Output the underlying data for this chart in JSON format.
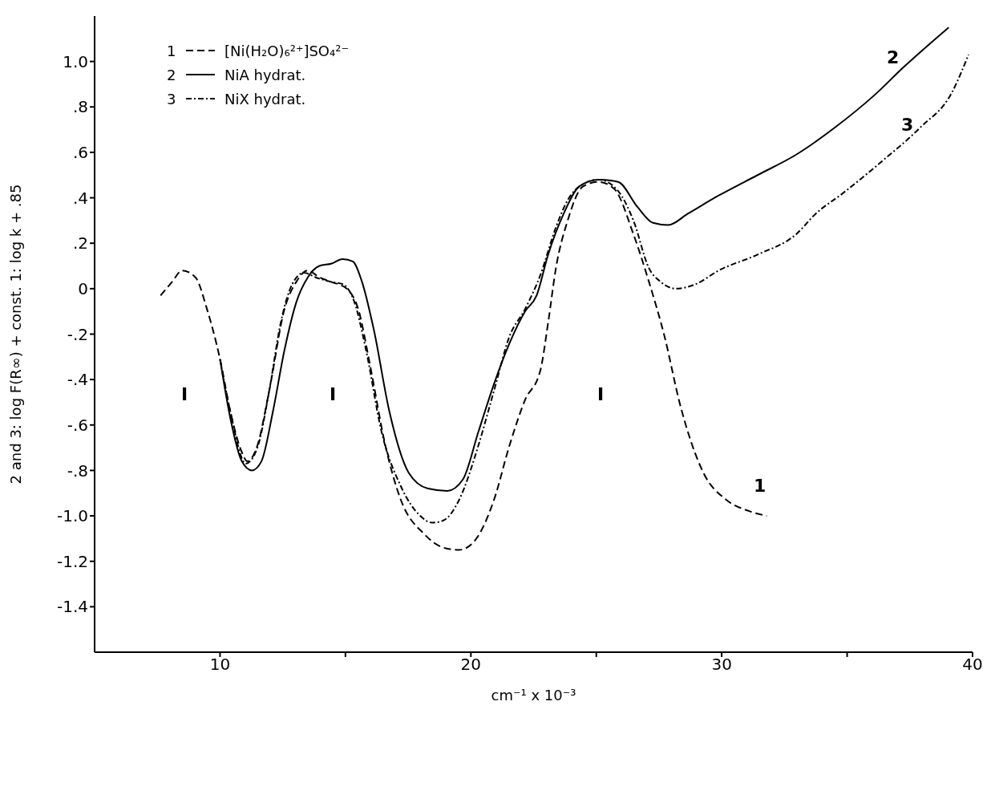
{
  "chart_data": {
    "type": "line",
    "xlabel": "cm⁻¹ x 10⁻³",
    "ylabel": "2 and 3: log F(R∞) + const.      1: log k + .85",
    "xlim": [
      5,
      40
    ],
    "xticks": [
      10,
      {
        "value": 15,
        "label": null
      },
      20,
      {
        "value": 25,
        "label": null
      },
      30,
      {
        "value": 35,
        "label": null
      },
      40
    ],
    "ylim": [
      -1.6,
      1.2
    ],
    "yticks": [
      {
        "value": 1.0,
        "label": "1.0"
      },
      {
        "value": 0.8,
        "label": ".8"
      },
      {
        "value": 0.6,
        "label": ".6"
      },
      {
        "value": 0.4,
        "label": ".4"
      },
      {
        "value": 0.2,
        "label": ".2"
      },
      0,
      {
        "value": -0.2,
        "label": "-.2"
      },
      {
        "value": -0.4,
        "label": "-.4"
      },
      {
        "value": -0.6,
        "label": "-.6"
      },
      {
        "value": -0.8,
        "label": "-.8"
      },
      {
        "value": -1.0,
        "label": "-1.0"
      },
      {
        "value": -1.2,
        "label": "-1.2"
      },
      {
        "value": -1.4,
        "label": "-1.4"
      }
    ],
    "legend": "top left",
    "marker": "none",
    "series": [
      {
        "name": "[Ni(H₂O)₆²⁺]SO₄²⁻",
        "color": "#000000",
        "line_style": "dashed",
        "x": [
          7.63,
          8.09,
          8.49,
          9.02,
          9.48,
          10.0,
          10.41,
          10.87,
          11.09,
          11.49,
          11.96,
          12.57,
          13.04,
          13.5,
          13.96,
          14.43,
          15.05,
          15.51,
          15.97,
          16.59,
          17.21,
          18.14,
          18.91,
          19.53,
          20.15,
          20.92,
          21.54,
          22.16,
          22.77,
          23.08,
          23.39,
          23.86,
          24.47,
          25.09,
          25.71,
          26.48,
          27.1,
          27.72,
          28.34,
          29.27,
          30.19,
          31.12,
          31.8
        ],
        "values": [
          -0.03,
          0.03,
          0.08,
          0.05,
          -0.09,
          -0.31,
          -0.54,
          -0.72,
          -0.76,
          -0.69,
          -0.45,
          -0.09,
          0.03,
          0.08,
          0.05,
          0.03,
          0.0,
          -0.09,
          -0.33,
          -0.69,
          -0.93,
          -1.08,
          -1.14,
          -1.15,
          -1.11,
          -0.93,
          -0.69,
          -0.49,
          -0.36,
          -0.15,
          0.09,
          0.3,
          0.45,
          0.47,
          0.44,
          0.24,
          0.03,
          -0.21,
          -0.51,
          -0.81,
          -0.93,
          -0.98,
          -1.0
        ]
      },
      {
        "name": "NiA hydrat.",
        "color": "#000000",
        "line_style": "solid",
        "x": [
          10.0,
          10.41,
          10.87,
          11.27,
          11.65,
          12.11,
          12.57,
          13.04,
          13.5,
          13.96,
          14.43,
          14.89,
          15.29,
          15.66,
          16.13,
          16.75,
          17.52,
          18.29,
          19.06,
          19.68,
          20.3,
          20.92,
          21.54,
          22.16,
          22.62,
          23.08,
          23.7,
          24.32,
          25.09,
          25.87,
          26.64,
          27.26,
          27.87,
          28.65,
          29.88,
          31.43,
          32.97,
          34.52,
          36.07,
          37.3,
          39.05
        ],
        "values": [
          -0.31,
          -0.57,
          -0.76,
          -0.8,
          -0.76,
          -0.54,
          -0.27,
          -0.06,
          0.05,
          0.1,
          0.11,
          0.13,
          0.12,
          0.03,
          -0.18,
          -0.54,
          -0.81,
          -0.88,
          -0.89,
          -0.84,
          -0.63,
          -0.42,
          -0.24,
          -0.1,
          -0.03,
          0.15,
          0.33,
          0.45,
          0.48,
          0.47,
          0.36,
          0.29,
          0.28,
          0.33,
          0.41,
          0.5,
          0.59,
          0.71,
          0.85,
          0.98,
          1.15
        ]
      },
      {
        "name": "NiX hydrat.",
        "color": "#000000",
        "line_style": "dotted",
        "x": [
          10.0,
          10.41,
          11.03,
          11.49,
          11.96,
          12.42,
          12.88,
          13.35,
          13.81,
          14.43,
          14.89,
          15.36,
          15.82,
          16.44,
          17.21,
          17.98,
          18.45,
          18.91,
          19.53,
          20.3,
          20.92,
          21.54,
          22.16,
          22.77,
          23.39,
          23.86,
          24.47,
          25.09,
          25.87,
          26.48,
          27.1,
          27.57,
          28.18,
          28.96,
          29.88,
          31.43,
          32.97,
          33.75,
          34.83,
          36.38,
          37.92,
          39.16,
          39.84
        ],
        "values": [
          -0.31,
          -0.54,
          -0.77,
          -0.7,
          -0.45,
          -0.15,
          0.02,
          0.07,
          0.05,
          0.03,
          0.02,
          -0.06,
          -0.27,
          -0.63,
          -0.87,
          -1.0,
          -1.03,
          -1.02,
          -0.93,
          -0.69,
          -0.45,
          -0.21,
          -0.09,
          0.06,
          0.27,
          0.39,
          0.46,
          0.48,
          0.43,
          0.3,
          0.09,
          0.03,
          0.0,
          0.02,
          0.08,
          0.15,
          0.24,
          0.33,
          0.42,
          0.56,
          0.71,
          0.86,
          1.03
        ]
      }
    ],
    "annotations": [
      "1",
      "2",
      "3",
      "I",
      "I",
      "I"
    ]
  }
}
